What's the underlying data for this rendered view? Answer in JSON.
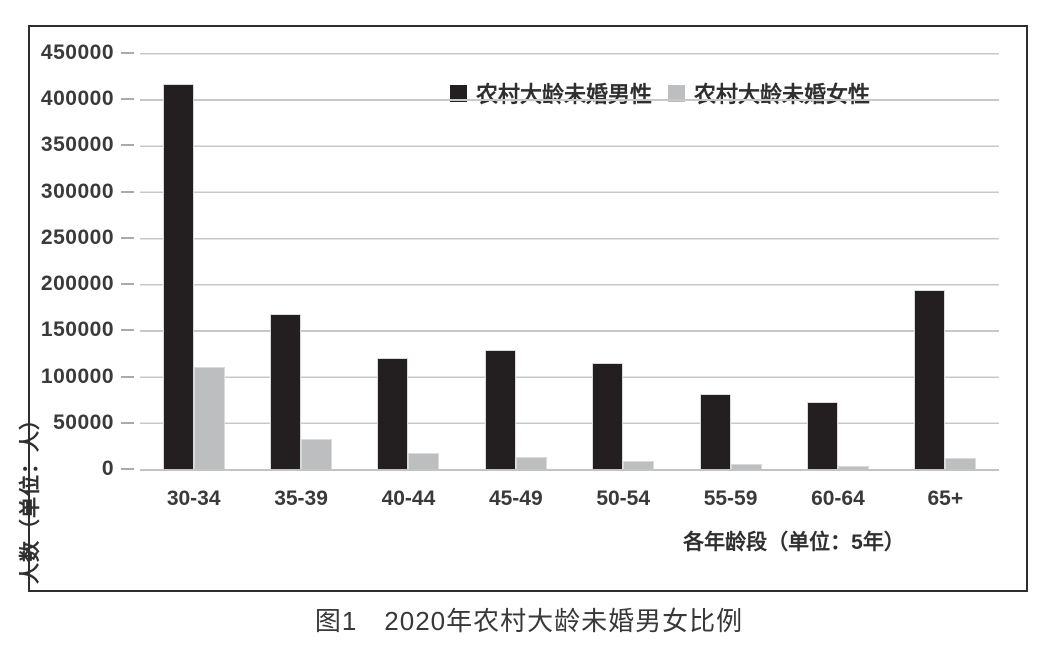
{
  "figure": {
    "caption": "图1　2020年农村大龄未婚男女比例"
  },
  "chart_data": {
    "type": "bar",
    "title": "图1　2020年农村大龄未婚男女比例",
    "xlabel": "各年龄段（单位：5年）",
    "ylabel": "人数（单位：人）",
    "categories": [
      "30-34",
      "35-39",
      "40-44",
      "45-49",
      "50-54",
      "55-59",
      "60-64",
      "65+"
    ],
    "series": [
      {
        "name": "农村大龄未婚男性",
        "color": "#231f20",
        "values": [
          417000,
          168000,
          120000,
          129000,
          115000,
          81000,
          72000,
          194000
        ]
      },
      {
        "name": "农村大龄未婚女性",
        "color": "#bcbec0",
        "values": [
          110000,
          33000,
          17000,
          13000,
          9000,
          5000,
          3000,
          12000
        ]
      }
    ],
    "ylim": [
      0,
      450000
    ],
    "ytick_step": 50000,
    "yticks": [
      0,
      50000,
      100000,
      150000,
      200000,
      250000,
      300000,
      350000,
      400000,
      450000
    ],
    "grid": true,
    "legend_position": "top-center-right",
    "gridline_color": "#c7c8ca",
    "frame_color": "#2e2e2e"
  }
}
